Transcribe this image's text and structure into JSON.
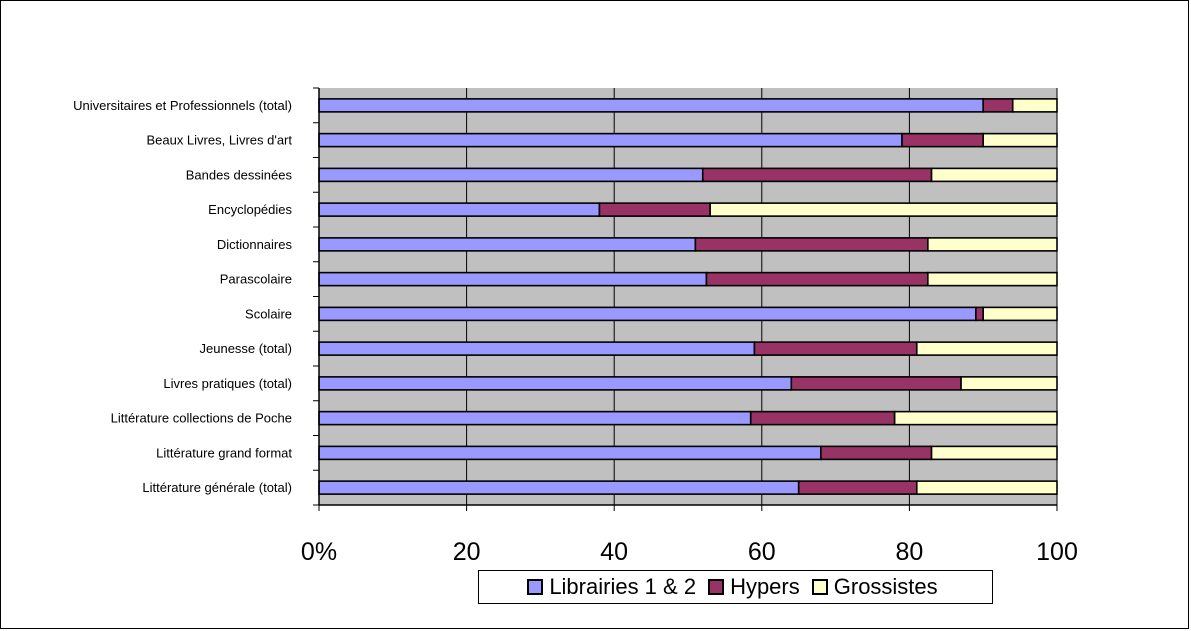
{
  "chart_data": {
    "type": "bar",
    "orientation": "horizontal",
    "stacked": true,
    "categories": [
      "Universitaires et Professionnels (total)",
      "Beaux Livres, Livres d'art",
      "Bandes dessinées",
      "Encyclopédies",
      "Dictionnaires",
      "Parascolaire",
      "Scolaire",
      "Jeunesse (total)",
      "Livres pratiques (total)",
      "Littérature collections de Poche",
      "Littérature grand format",
      "Littérature générale (total)"
    ],
    "series": [
      {
        "name": "Librairies 1 & 2",
        "color": "#9999ff",
        "values": [
          90,
          79,
          52,
          38,
          51,
          52.5,
          89,
          59,
          64,
          58.5,
          68,
          65
        ]
      },
      {
        "name": "Hypers",
        "color": "#993366",
        "values": [
          4,
          11,
          31,
          15,
          31.5,
          30,
          1,
          22,
          23,
          19.5,
          15,
          16
        ]
      },
      {
        "name": "Grossistes",
        "color": "#ffffcc",
        "values": [
          6,
          10,
          17,
          47,
          17.5,
          17.5,
          10,
          19,
          13,
          22,
          17,
          19
        ]
      }
    ],
    "xlim": [
      0,
      100
    ],
    "xticks": [
      "0%",
      "20",
      "40",
      "60",
      "80",
      "100"
    ],
    "grid": true,
    "plot_background": "#c0c0c0",
    "legend_position": "bottom"
  }
}
